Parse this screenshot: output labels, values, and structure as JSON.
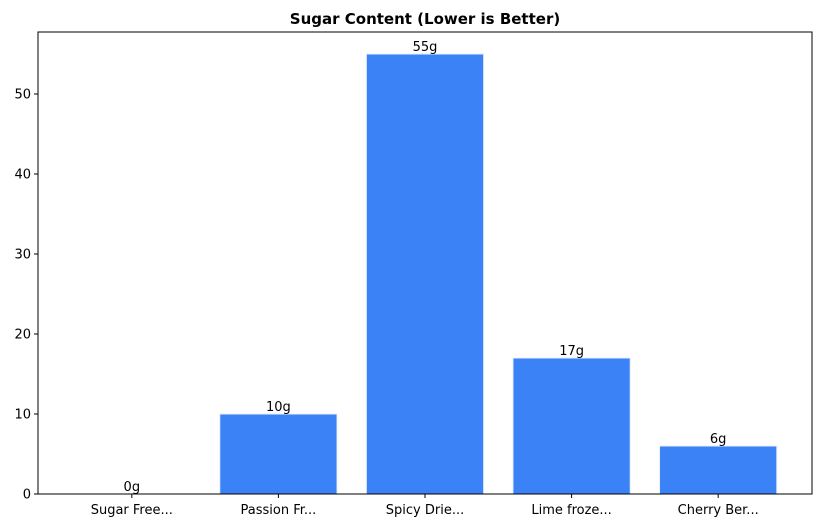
{
  "chart_data": {
    "type": "bar",
    "title": "Sugar Content (Lower is Better)",
    "categories": [
      "Sugar Free...",
      "Passion Fr...",
      "Spicy Drie...",
      "Lime froze...",
      "Cherry Ber..."
    ],
    "values": [
      0,
      10,
      55,
      17,
      6
    ],
    "value_labels": [
      "0g",
      "10g",
      "55g",
      "17g",
      "6g"
    ],
    "color": "#3b82f6",
    "ylim": [
      0,
      57.75
    ],
    "yticks": [
      0,
      10,
      20,
      30,
      40,
      50
    ],
    "grid": false
  }
}
